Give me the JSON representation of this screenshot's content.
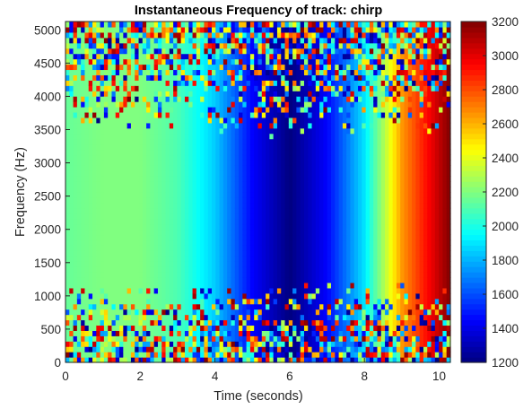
{
  "chart_data": {
    "type": "heatmap",
    "title": "Instantaneous Frequency of track: chirp",
    "xlabel": "Time (seconds)",
    "ylabel": "Frequency (Hz)",
    "xlim": [
      0,
      10.3
    ],
    "ylim": [
      0,
      5125
    ],
    "x_ticks": [
      0,
      2,
      4,
      6,
      8,
      10
    ],
    "y_ticks": [
      0,
      500,
      1000,
      1500,
      2000,
      2500,
      3000,
      3500,
      4000,
      4500,
      5000
    ],
    "colorbar": {
      "colormap": "jet",
      "range": [
        1200,
        3200
      ],
      "ticks": [
        1200,
        1400,
        1600,
        1800,
        2000,
        2200,
        2400,
        2600,
        2800,
        3000,
        3200
      ]
    },
    "value_profile_over_time": {
      "time_s": [
        0,
        1,
        2,
        3,
        4,
        5,
        6,
        7,
        8,
        9,
        10.3
      ],
      "instantaneous_frequency_hz": [
        2150,
        2200,
        2200,
        2100,
        1850,
        1450,
        1200,
        1450,
        1900,
        2650,
        3200
      ]
    },
    "noisy_frequency_bands_hz": [
      [
        0,
        1200
      ],
      [
        3400,
        5125
      ]
    ]
  }
}
